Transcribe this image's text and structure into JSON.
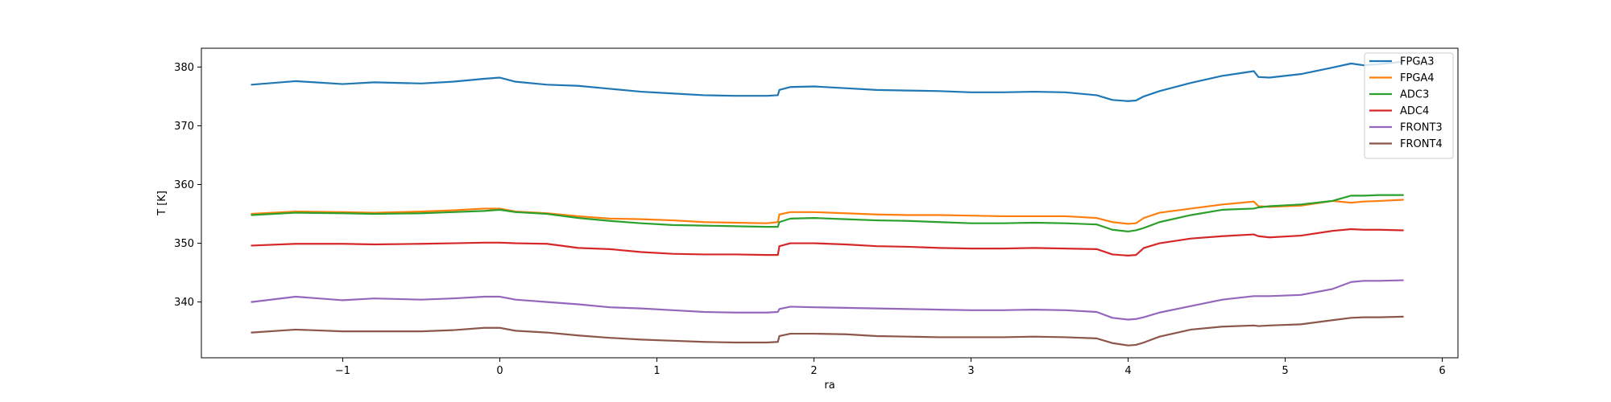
{
  "chart_data": {
    "type": "line",
    "title": "",
    "xlabel": "ra",
    "ylabel": "T [K]",
    "xlim": [
      -1.9,
      6.1
    ],
    "ylim": [
      330.5,
      383.2
    ],
    "grid": false,
    "legend_position": "top-right",
    "x_ticks": [
      -1,
      0,
      1,
      2,
      3,
      4,
      5,
      6
    ],
    "x_tick_labels": [
      "−1",
      "0",
      "1",
      "2",
      "3",
      "4",
      "5",
      "6"
    ],
    "y_ticks": [
      340,
      350,
      360,
      370,
      380
    ],
    "y_tick_labels": [
      "340",
      "350",
      "360",
      "370",
      "380"
    ],
    "x": [
      -1.58,
      -1.3,
      -1.0,
      -0.8,
      -0.5,
      -0.3,
      -0.1,
      0.0,
      0.1,
      0.3,
      0.5,
      0.7,
      0.9,
      1.1,
      1.3,
      1.5,
      1.7,
      1.77,
      1.78,
      1.85,
      2.0,
      2.2,
      2.4,
      2.6,
      2.8,
      3.0,
      3.2,
      3.4,
      3.6,
      3.8,
      3.9,
      4.0,
      4.05,
      4.1,
      4.2,
      4.4,
      4.6,
      4.8,
      4.83,
      4.9,
      5.1,
      5.3,
      5.42,
      5.5,
      5.6,
      5.75
    ],
    "series": [
      {
        "name": "FPGA3",
        "color": "#1f77b4",
        "values": [
          377.0,
          377.6,
          377.1,
          377.4,
          377.2,
          377.5,
          378.0,
          378.2,
          377.5,
          377.0,
          376.8,
          376.3,
          375.8,
          375.5,
          375.2,
          375.1,
          375.1,
          375.2,
          376.1,
          376.6,
          376.7,
          376.4,
          376.1,
          376.0,
          375.9,
          375.7,
          375.7,
          375.8,
          375.7,
          375.2,
          374.4,
          374.2,
          374.3,
          375.0,
          375.9,
          377.3,
          378.5,
          379.3,
          378.3,
          378.2,
          378.8,
          379.9,
          380.6,
          380.3,
          380.5,
          380.9
        ]
      },
      {
        "name": "FPGA4",
        "color": "#ff7f0e",
        "values": [
          355.0,
          355.4,
          355.3,
          355.2,
          355.4,
          355.6,
          355.9,
          355.9,
          355.4,
          355.1,
          354.6,
          354.2,
          354.1,
          353.9,
          353.6,
          353.5,
          353.4,
          353.6,
          354.9,
          355.3,
          355.3,
          355.1,
          354.9,
          354.8,
          354.8,
          354.7,
          354.6,
          354.6,
          354.6,
          354.3,
          353.6,
          353.3,
          353.4,
          354.3,
          355.2,
          355.9,
          356.6,
          357.1,
          356.3,
          356.2,
          356.4,
          357.2,
          356.9,
          357.1,
          357.2,
          357.4
        ]
      },
      {
        "name": "ADC3",
        "color": "#2ca02c",
        "values": [
          354.8,
          355.2,
          355.1,
          355.0,
          355.1,
          355.3,
          355.5,
          355.7,
          355.3,
          355.0,
          354.3,
          353.8,
          353.4,
          353.1,
          353.0,
          352.9,
          352.8,
          352.8,
          353.6,
          354.2,
          354.3,
          354.1,
          353.9,
          353.8,
          353.6,
          353.4,
          353.4,
          353.5,
          353.4,
          353.2,
          352.3,
          352.0,
          352.2,
          352.6,
          353.6,
          354.8,
          355.7,
          355.9,
          356.1,
          356.3,
          356.6,
          357.2,
          358.1,
          358.1,
          358.2,
          358.2
        ]
      },
      {
        "name": "ADC4",
        "color": "#d62728",
        "values": [
          349.6,
          349.9,
          349.9,
          349.8,
          349.9,
          350.0,
          350.1,
          350.1,
          350.0,
          349.9,
          349.2,
          349.0,
          348.5,
          348.2,
          348.1,
          348.1,
          348.0,
          348.0,
          349.5,
          350.0,
          350.0,
          349.8,
          349.5,
          349.4,
          349.2,
          349.1,
          349.1,
          349.2,
          349.1,
          349.0,
          348.1,
          347.9,
          348.0,
          349.2,
          350.0,
          350.8,
          351.2,
          351.5,
          351.2,
          351.0,
          351.3,
          352.1,
          352.4,
          352.3,
          352.3,
          352.2
        ]
      },
      {
        "name": "FRONT3",
        "color": "#9467bd",
        "values": [
          340.0,
          340.9,
          340.3,
          340.6,
          340.4,
          340.6,
          340.9,
          340.9,
          340.4,
          340.0,
          339.6,
          339.1,
          338.9,
          338.6,
          338.3,
          338.2,
          338.2,
          338.3,
          338.8,
          339.2,
          339.1,
          339.0,
          338.9,
          338.8,
          338.7,
          338.6,
          338.6,
          338.7,
          338.6,
          338.3,
          337.3,
          337.0,
          337.1,
          337.4,
          338.2,
          339.3,
          340.4,
          341.0,
          341.0,
          341.0,
          341.2,
          342.2,
          343.4,
          343.6,
          343.6,
          343.7
        ]
      },
      {
        "name": "FRONT4",
        "color": "#8c564b",
        "values": [
          334.8,
          335.3,
          335.0,
          335.0,
          335.0,
          335.2,
          335.6,
          335.6,
          335.1,
          334.8,
          334.3,
          333.9,
          333.6,
          333.4,
          333.2,
          333.1,
          333.1,
          333.2,
          334.2,
          334.6,
          334.6,
          334.5,
          334.2,
          334.1,
          334.0,
          334.0,
          334.0,
          334.1,
          334.0,
          333.8,
          333.0,
          332.6,
          332.7,
          333.1,
          334.1,
          335.3,
          335.8,
          336.0,
          335.9,
          336.0,
          336.2,
          336.9,
          337.3,
          337.4,
          337.4,
          337.5
        ]
      }
    ]
  }
}
